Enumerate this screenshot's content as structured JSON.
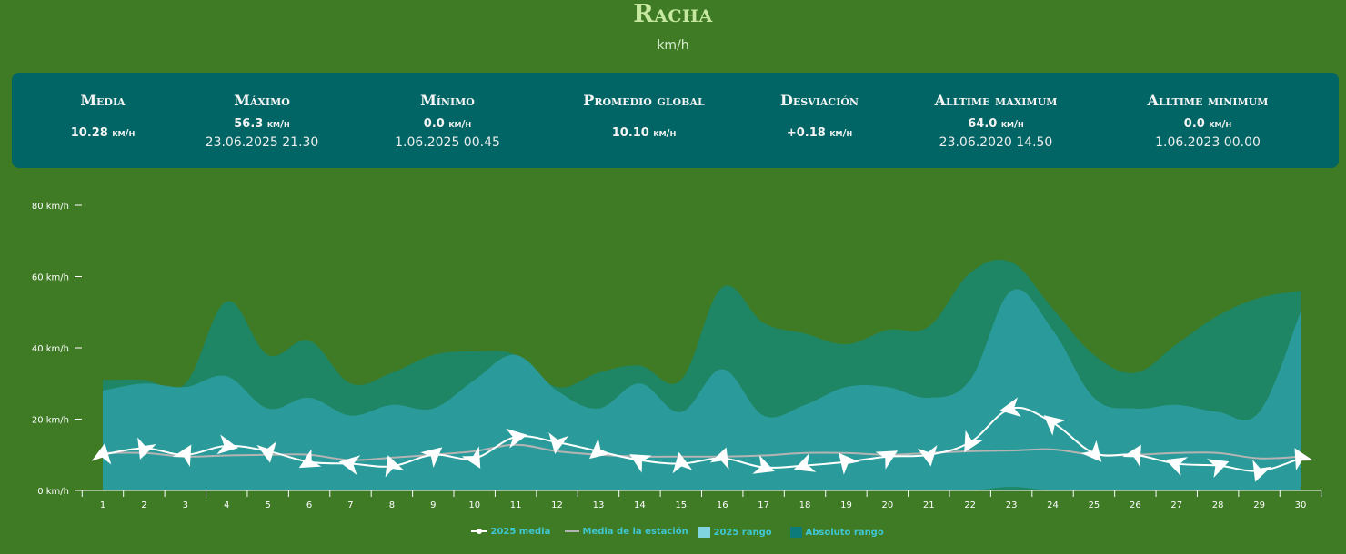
{
  "header": {
    "title": "Racha",
    "subtitle": "km/h"
  },
  "stats": [
    {
      "label": "Media",
      "value": "10.28",
      "unit": "km/h",
      "date": ""
    },
    {
      "label": "Máximo",
      "value": "56.3",
      "unit": "km/h",
      "date": "23.06.2025 21.30"
    },
    {
      "label": "Mínimo",
      "value": "0.0",
      "unit": "km/h",
      "date": "1.06.2025 00.45"
    },
    {
      "label": "Promedio global",
      "value": "10.10",
      "unit": "km/h",
      "date": ""
    },
    {
      "label": "Desviación",
      "value": "+0.18",
      "unit": "km/h",
      "date": ""
    },
    {
      "label": "Alltime maximum",
      "value": "64.0",
      "unit": "km/h",
      "date": "23.06.2020 14.50"
    },
    {
      "label": "Alltime minimum",
      "value": "0.0",
      "unit": "km/h",
      "date": "1.06.2023 00.00"
    }
  ],
  "legend": {
    "media2025": "2025 media",
    "estacion": "Media de la estación",
    "rango2025": "2025 rango",
    "absoluto": "Absoluto rango"
  },
  "colors": {
    "background": "#3f7a25",
    "panel": "#016565",
    "absolute_range": "#1e8664",
    "range_2025": "#2a9b9a",
    "media_2025": "#ffffff",
    "station_mean": "#b4b4b4"
  },
  "chart_data": {
    "type": "area",
    "title": "Racha",
    "ylabel": "km/h",
    "ylim": [
      0,
      80
    ],
    "yticks": [
      "0 km/h",
      "20 km/h",
      "40 km/h",
      "60 km/h",
      "80 km/h"
    ],
    "x": [
      1,
      2,
      3,
      4,
      5,
      6,
      7,
      8,
      9,
      10,
      11,
      12,
      13,
      14,
      15,
      16,
      17,
      18,
      19,
      20,
      21,
      22,
      23,
      24,
      25,
      26,
      27,
      28,
      29,
      30
    ],
    "series": [
      {
        "name": "Absoluto rango",
        "type": "arearange",
        "low": [
          0,
          0,
          0,
          0,
          0,
          0,
          0,
          0,
          0,
          0,
          0,
          0,
          0,
          0,
          0,
          0,
          0,
          0,
          0,
          0,
          0,
          0,
          0,
          0,
          0,
          0,
          0,
          0,
          0,
          0
        ],
        "high": [
          31,
          31,
          30,
          53,
          38,
          42,
          30,
          33,
          38,
          39,
          38,
          29,
          33,
          35,
          31,
          57,
          47,
          44,
          41,
          45,
          46,
          61,
          64,
          51,
          38,
          33,
          41,
          49,
          54,
          56
        ]
      },
      {
        "name": "2025 rango",
        "type": "arearange",
        "low": [
          0,
          0,
          0,
          0,
          0,
          0,
          0,
          0,
          0,
          0,
          0,
          0,
          0,
          0,
          0,
          0,
          0,
          0,
          0,
          0,
          0,
          0,
          1,
          0,
          0,
          0,
          0,
          0,
          0,
          0
        ],
        "high": [
          28,
          30,
          29,
          32,
          23,
          26,
          21,
          24,
          23,
          31,
          38,
          28,
          23,
          30,
          22,
          34,
          21,
          24,
          29,
          29,
          26,
          31,
          56,
          45,
          26,
          23,
          24,
          22,
          22,
          50
        ]
      },
      {
        "name": "Media de la estación",
        "type": "line",
        "values": [
          10.5,
          10.5,
          9.5,
          9.8,
          10.0,
          10.0,
          8.5,
          9.2,
          10.0,
          11.0,
          12.8,
          11.0,
          10.0,
          9.5,
          9.5,
          9.5,
          9.8,
          10.5,
          10.5,
          10.0,
          10.5,
          11.0,
          11.2,
          11.5,
          10.0,
          10.0,
          10.5,
          10.5,
          9.0,
          9.5
        ]
      },
      {
        "name": "2025 media",
        "type": "line",
        "values": [
          10.0,
          11.8,
          10.0,
          12.5,
          11.0,
          8.0,
          7.5,
          6.8,
          10.0,
          9.0,
          15.0,
          13.5,
          11.0,
          8.5,
          7.5,
          9.0,
          6.5,
          7.0,
          8.0,
          9.5,
          10.0,
          13.5,
          23.0,
          19.0,
          10.5,
          10.0,
          7.5,
          7.0,
          5.5,
          9.0
        ]
      }
    ]
  }
}
